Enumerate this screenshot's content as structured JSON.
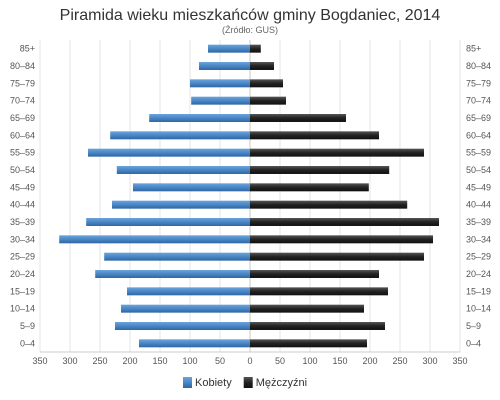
{
  "chart_data": {
    "type": "bar",
    "orientation": "horizontal-pyramid",
    "title": "Piramida wieku mieszkańców gminy Bogdaniec, 2014",
    "subtitle": "(Źródło: GUS)",
    "categories": [
      "85+",
      "80–84",
      "75–79",
      "70–74",
      "65–69",
      "60–64",
      "55–59",
      "50–54",
      "45–49",
      "40–44",
      "35–39",
      "30–34",
      "25–29",
      "20–24",
      "15–19",
      "10–14",
      "5–9",
      "0–4"
    ],
    "series": [
      {
        "name": "Kobiety",
        "color": "#4a86c5",
        "side": "left",
        "values": [
          70,
          85,
          100,
          98,
          168,
          233,
          270,
          222,
          195,
          230,
          273,
          318,
          243,
          258,
          205,
          215,
          225,
          185
        ]
      },
      {
        "name": "Mężczyźni",
        "color": "#222222",
        "side": "right",
        "values": [
          18,
          40,
          55,
          60,
          160,
          215,
          290,
          232,
          198,
          262,
          315,
          305,
          290,
          215,
          230,
          190,
          225,
          195
        ]
      }
    ],
    "xlim": [
      -350,
      350
    ],
    "xticks": [
      -350,
      -300,
      -250,
      -200,
      -150,
      -100,
      -50,
      0,
      50,
      100,
      150,
      200,
      250,
      300,
      350
    ],
    "xtick_labels": [
      "350",
      "300",
      "250",
      "200",
      "150",
      "100",
      "50",
      "0",
      "50",
      "100",
      "150",
      "200",
      "250",
      "300",
      "350"
    ],
    "grid": true,
    "legend_position": "bottom-center"
  }
}
